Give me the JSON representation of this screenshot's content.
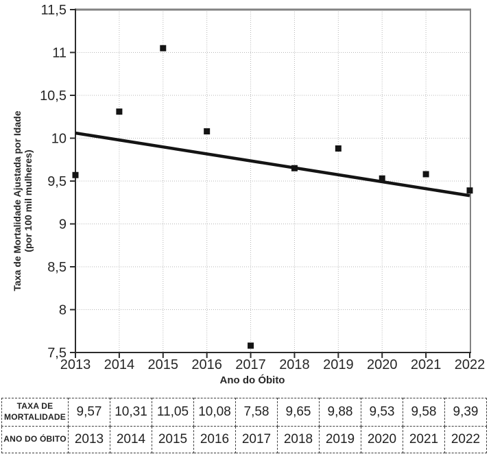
{
  "chart_data": {
    "type": "scatter",
    "x": [
      2013,
      2014,
      2015,
      2016,
      2017,
      2018,
      2019,
      2020,
      2021,
      2022
    ],
    "x_labels": [
      "2013",
      "2014",
      "2015",
      "2016",
      "2017",
      "2018",
      "2019",
      "2020",
      "2021",
      "2022"
    ],
    "values": [
      9.57,
      10.31,
      11.05,
      10.08,
      7.58,
      9.65,
      9.88,
      9.53,
      9.58,
      9.39
    ],
    "value_labels": [
      "9,57",
      "10,31",
      "11,05",
      "10,08",
      "7,58",
      "9,65",
      "9,88",
      "9,53",
      "9,58",
      "9,39"
    ],
    "xlabel": "Ano do Óbito",
    "ylabel": [
      "Taxa de Mortalidade Ajustada por Idade",
      "(por 100 mil mulheres)"
    ],
    "ylim": [
      7.5,
      11.5
    ],
    "yticks": [
      7.5,
      8,
      8.5,
      9,
      9.5,
      10,
      10.5,
      11,
      11.5
    ],
    "ytick_labels": [
      "7,5",
      "8",
      "8,5",
      "9",
      "9,5",
      "10",
      "10,5",
      "11",
      "11,5"
    ],
    "grid": "dotted",
    "legend": "none",
    "marker": "black-square",
    "trendline": {
      "x_start": 2013,
      "y_start": 10.06,
      "x_end": 2022,
      "y_end": 9.33
    }
  },
  "table": {
    "rate_header": [
      "TAXA DE",
      "MORTALIDADE"
    ],
    "year_header": "ANO DO ÓBITO",
    "rate_values": [
      "9,57",
      "10,31",
      "11,05",
      "10,08",
      "7,58",
      "9,65",
      "9,88",
      "9,53",
      "9,58",
      "9,39"
    ],
    "year_values": [
      "2013",
      "2014",
      "2015",
      "2016",
      "2017",
      "2018",
      "2019",
      "2020",
      "2021",
      "2022"
    ]
  },
  "colors": {
    "axis": "#2b2b2b",
    "border_gray": "#828282",
    "grid": "#b5b5b5",
    "marker": "#141414",
    "trend": "#141414",
    "text": "#262626",
    "table_border": "#3c3c3c"
  }
}
